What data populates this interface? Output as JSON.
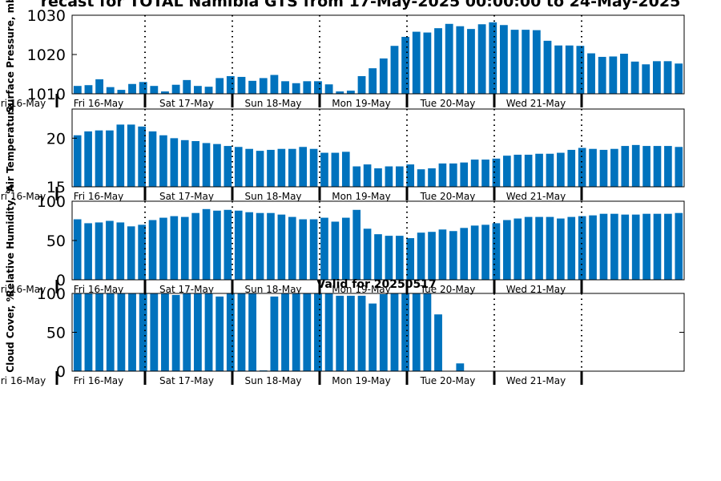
{
  "title": "recast for TOTAL Namibia GTS from 17-May-2025 00:00:00 to 24-May-2025",
  "bar_color": "#0072bd",
  "chart_data": [
    {
      "type": "bar",
      "title": "",
      "ylabel": "Surface Pressure, mb",
      "ylim": [
        1010,
        1030
      ],
      "yticks": [
        1010,
        1020,
        1030
      ],
      "right_ticks": false,
      "day_labels": [
        "ri 16-May",
        "Fri 16-May",
        "Sat 17-May",
        "Sun 18-May",
        "Mon 19-May",
        "Tue 20-May",
        "Wed 21-May"
      ],
      "values": [
        1012.0,
        1012.2,
        1013.7,
        1011.7,
        1011.0,
        1012.5,
        1013.0,
        1012.0,
        1010.6,
        1012.3,
        1013.5,
        1012.0,
        1011.8,
        1014.0,
        1014.5,
        1014.3,
        1013.3,
        1014.0,
        1014.8,
        1013.2,
        1012.7,
        1013.2,
        1013.2,
        1012.4,
        1010.6,
        1010.8,
        1014.5,
        1016.5,
        1019.0,
        1022.2,
        1024.5,
        1025.8,
        1025.6,
        1026.7,
        1027.8,
        1027.2,
        1026.5,
        1027.7,
        1028.2,
        1027.5,
        1026.3,
        1026.3,
        1026.2,
        1023.5,
        1022.3,
        1022.3,
        1022.2,
        1020.3,
        1019.4,
        1019.5,
        1020.2,
        1018.2,
        1017.5,
        1018.3,
        1018.3,
        1017.7
      ]
    },
    {
      "type": "bar",
      "title": "",
      "ylabel": "Air Temperature",
      "ylim": [
        15,
        23
      ],
      "yticks": [
        15,
        20
      ],
      "right_ticks": false,
      "day_labels": [
        "ri 16-May",
        "Fri 16-May",
        "Sat 17-May",
        "Sun 18-May",
        "Mon 19-May",
        "Tue 20-May",
        "Wed 21-May"
      ],
      "values": [
        20.3,
        20.7,
        20.8,
        20.8,
        21.4,
        21.4,
        21.2,
        20.7,
        20.3,
        20.0,
        19.8,
        19.7,
        19.5,
        19.4,
        19.2,
        19.1,
        18.9,
        18.7,
        18.8,
        18.9,
        18.9,
        19.1,
        18.9,
        18.5,
        18.5,
        18.6,
        17.1,
        17.3,
        16.9,
        17.1,
        17.1,
        17.3,
        16.8,
        16.9,
        17.4,
        17.4,
        17.5,
        17.8,
        17.8,
        17.9,
        18.2,
        18.3,
        18.3,
        18.4,
        18.4,
        18.5,
        18.8,
        19.0,
        18.9,
        18.8,
        18.9,
        19.2,
        19.3,
        19.2,
        19.2,
        19.2,
        19.1
      ]
    },
    {
      "type": "bar",
      "title": "",
      "ylabel": "Relative Humidity, %",
      "ylim": [
        0,
        100
      ],
      "yticks": [
        0,
        50,
        100
      ],
      "right_ticks": false,
      "day_labels": [
        "ri 16-May",
        "Fri 16-May",
        "Sat 17-May",
        "Sun 18-May",
        "Mon 19-May",
        "Tue 20-May",
        "Wed 21-May"
      ],
      "values": [
        77,
        72,
        73,
        75,
        73,
        68,
        70,
        76,
        79,
        81,
        80,
        85,
        90,
        88,
        89,
        88,
        86,
        85,
        85,
        83,
        80,
        77,
        77,
        79,
        74,
        79,
        89,
        65,
        58,
        56,
        56,
        53,
        60,
        61,
        64,
        62,
        66,
        69,
        70,
        72,
        76,
        78,
        80,
        80,
        80,
        78,
        80,
        81,
        82,
        84,
        84,
        83,
        83,
        84,
        84,
        84,
        85
      ]
    },
    {
      "type": "bar",
      "title": "Valid for 20250517",
      "ylabel": "Cloud Cover, %",
      "ylim": [
        0,
        100
      ],
      "yticks": [
        0,
        50,
        100
      ],
      "right_ticks": true,
      "day_labels": [
        "ri 16-May",
        "Fri 16-May",
        "Sat 17-May",
        "Sun 18-May",
        "Mon 19-May",
        "Tue 20-May",
        "Wed 21-May"
      ],
      "values": [
        100,
        100,
        100,
        100,
        100,
        100,
        100,
        100,
        100,
        98,
        100,
        100,
        100,
        96,
        100,
        100,
        100,
        1,
        96,
        100,
        100,
        100,
        100,
        100,
        97,
        97,
        97,
        87,
        99,
        100,
        100,
        100,
        100,
        73,
        0,
        10,
        0,
        0,
        0,
        0,
        0,
        0,
        0,
        0,
        0,
        0,
        0,
        0,
        0,
        0,
        0,
        0,
        0,
        0,
        0,
        0
      ]
    }
  ]
}
